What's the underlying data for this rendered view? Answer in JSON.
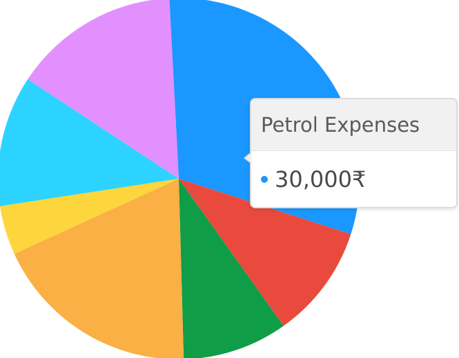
{
  "chart_data": {
    "type": "pie",
    "slices": [
      {
        "color": "#1A98FF",
        "share": 30.8
      },
      {
        "color": "#E94A3D",
        "share": 10.2
      },
      {
        "color": "#109D48",
        "share": 9.4
      },
      {
        "color": "#FAB044",
        "share": 18.6
      },
      {
        "color": "#FDD53C",
        "share": 4.4
      },
      {
        "color": "#2DD3FF",
        "share": 11.7
      },
      {
        "color": "#E390FF",
        "share": 14.9
      }
    ]
  },
  "tooltip": {
    "title": "Petrol Expenses",
    "value": "30,000₹",
    "marker_color": "#1A98FF"
  }
}
